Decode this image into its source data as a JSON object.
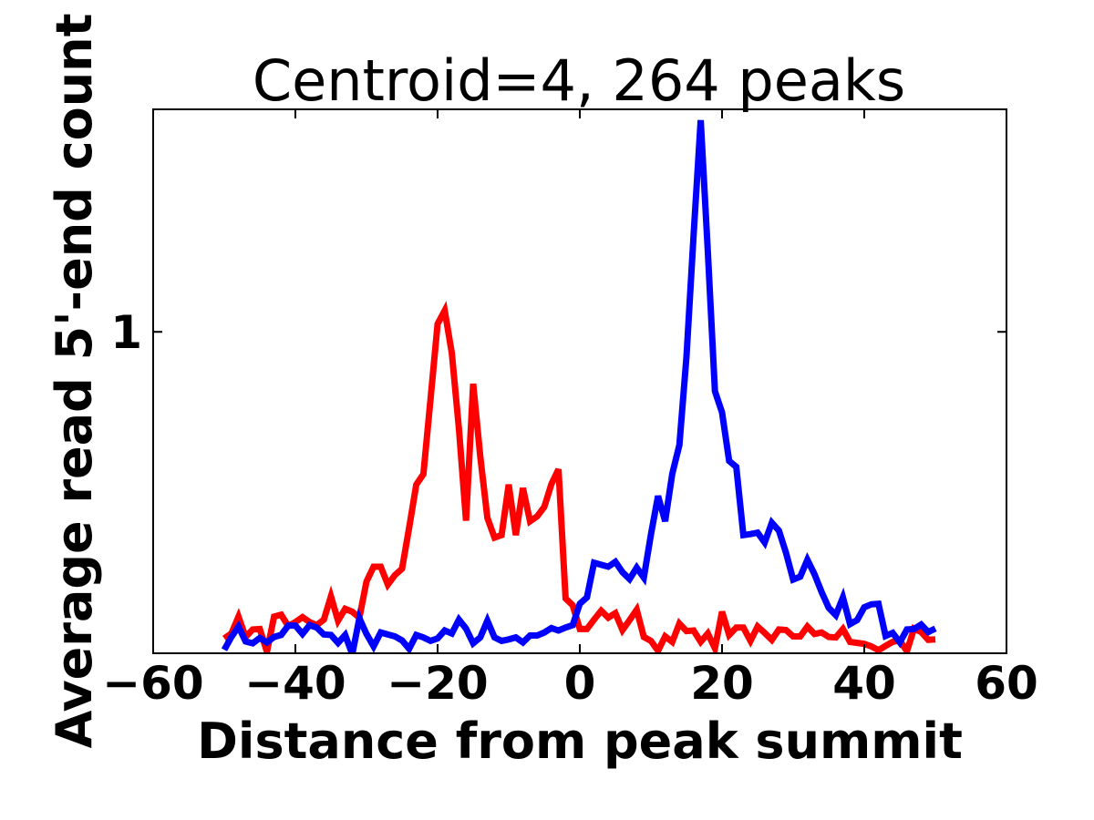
{
  "chart_data": {
    "type": "line",
    "title": "Centroid=4, 264 peaks",
    "xlabel": "Distance from peak summit",
    "ylabel": "Average read 5'-end count",
    "xlim": [
      -60,
      60
    ],
    "ylim": [
      0.35,
      1.45
    ],
    "grid": false,
    "x_ticks": [
      {
        "value": -60,
        "label": "−60"
      },
      {
        "value": -40,
        "label": "−40"
      },
      {
        "value": -20,
        "label": "−20"
      },
      {
        "value": 0,
        "label": "0"
      },
      {
        "value": 20,
        "label": "20"
      },
      {
        "value": 40,
        "label": "40"
      },
      {
        "value": 60,
        "label": "60"
      }
    ],
    "y_ticks": [
      {
        "value": 1,
        "label": "1"
      }
    ],
    "x": [
      -50,
      -49,
      -48,
      -47,
      -46,
      -45,
      -44,
      -43,
      -42,
      -41,
      -40,
      -39,
      -38,
      -37,
      -36,
      -35,
      -34,
      -33,
      -32,
      -31,
      -30,
      -29,
      -28,
      -27,
      -26,
      -25,
      -24,
      -23,
      -22,
      -21,
      -20,
      -19,
      -18,
      -17,
      -16,
      -15,
      -14,
      -13,
      -12,
      -11,
      -10,
      -9,
      -8,
      -7,
      -6,
      -5,
      -4,
      -3,
      -2,
      -1,
      0,
      1,
      2,
      3,
      4,
      5,
      6,
      7,
      8,
      9,
      10,
      11,
      12,
      13,
      14,
      15,
      16,
      17,
      18,
      19,
      20,
      21,
      22,
      23,
      24,
      25,
      26,
      27,
      28,
      29,
      30,
      31,
      32,
      33,
      34,
      35,
      36,
      37,
      38,
      39,
      40,
      41,
      42,
      43,
      44,
      45,
      46,
      47,
      48,
      49,
      50
    ],
    "series": [
      {
        "color": "#ff0000",
        "values": [
          0.38,
          0.39,
          0.424,
          0.383,
          0.398,
          0.399,
          0.353,
          0.424,
          0.428,
          0.405,
          0.413,
          0.423,
          0.413,
          0.407,
          0.418,
          0.465,
          0.416,
          0.44,
          0.434,
          0.422,
          0.495,
          0.525,
          0.525,
          0.489,
          0.508,
          0.521,
          0.604,
          0.691,
          0.712,
          0.863,
          1.016,
          1.043,
          0.957,
          0.804,
          0.618,
          0.895,
          0.748,
          0.624,
          0.584,
          0.589,
          0.691,
          0.589,
          0.684,
          0.617,
          0.627,
          0.646,
          0.692,
          0.722,
          0.461,
          0.447,
          0.399,
          0.399,
          0.418,
          0.436,
          0.422,
          0.431,
          0.397,
          0.417,
          0.438,
          0.383,
          0.375,
          0.355,
          0.384,
          0.373,
          0.41,
          0.395,
          0.396,
          0.373,
          0.39,
          0.36,
          0.434,
          0.387,
          0.402,
          0.402,
          0.375,
          0.404,
          0.391,
          0.377,
          0.398,
          0.397,
          0.384,
          0.384,
          0.404,
          0.389,
          0.392,
          0.383,
          0.382,
          0.399,
          0.373,
          0.371,
          0.369,
          0.364,
          0.356,
          0.365,
          0.373,
          0.376,
          0.354,
          0.4,
          0.393,
          0.377,
          0.378
        ]
      },
      {
        "color": "#0000ff",
        "values": [
          0.357,
          0.383,
          0.404,
          0.374,
          0.37,
          0.381,
          0.372,
          0.383,
          0.387,
          0.406,
          0.406,
          0.389,
          0.407,
          0.402,
          0.388,
          0.387,
          0.371,
          0.387,
          0.348,
          0.421,
          0.389,
          0.364,
          0.392,
          0.388,
          0.384,
          0.376,
          0.359,
          0.387,
          0.382,
          0.375,
          0.38,
          0.396,
          0.39,
          0.418,
          0.4,
          0.37,
          0.382,
          0.416,
          0.382,
          0.375,
          0.378,
          0.382,
          0.372,
          0.386,
          0.386,
          0.392,
          0.401,
          0.396,
          0.402,
          0.407,
          0.45,
          0.463,
          0.533,
          0.529,
          0.525,
          0.535,
          0.514,
          0.5,
          0.523,
          0.503,
          0.59,
          0.668,
          0.617,
          0.713,
          0.771,
          0.95,
          1.196,
          1.428,
          1.163,
          0.88,
          0.837,
          0.739,
          0.727,
          0.589,
          0.591,
          0.594,
          0.574,
          0.614,
          0.598,
          0.553,
          0.499,
          0.505,
          0.539,
          0.51,
          0.474,
          0.442,
          0.427,
          0.463,
          0.409,
          0.417,
          0.443,
          0.449,
          0.45,
          0.385,
          0.391,
          0.372,
          0.398,
          0.399,
          0.408,
          0.393,
          0.4
        ]
      }
    ]
  }
}
